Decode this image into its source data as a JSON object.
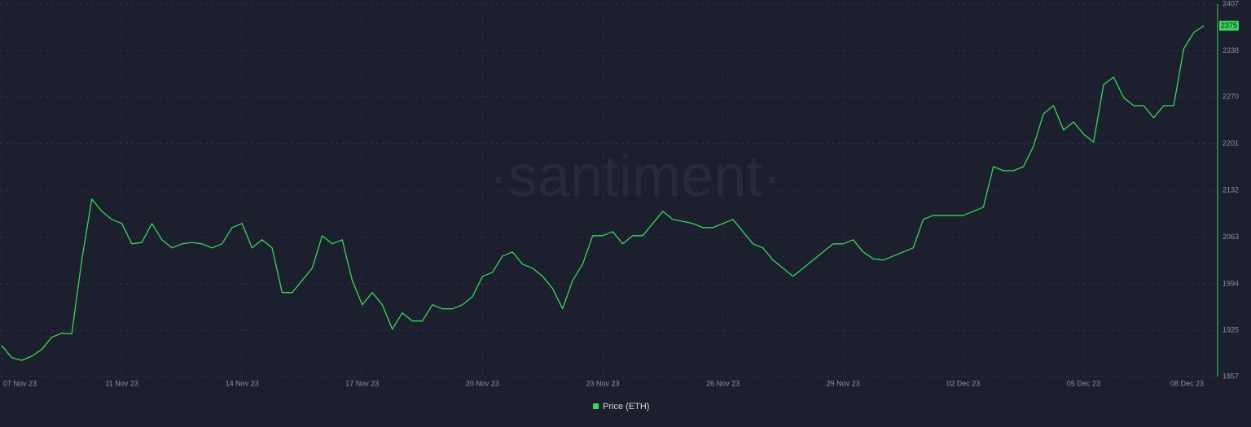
{
  "chart_data": {
    "type": "line",
    "watermark": "·santiment·",
    "categories": [
      "07 Nov 23",
      null,
      null,
      null,
      null,
      null,
      null,
      null,
      null,
      null,
      null,
      null,
      "11 Nov 23",
      null,
      null,
      null,
      null,
      null,
      null,
      null,
      null,
      null,
      null,
      null,
      "14 Nov 23",
      null,
      null,
      null,
      null,
      null,
      null,
      null,
      null,
      null,
      null,
      null,
      "17 Nov 23",
      null,
      null,
      null,
      null,
      null,
      null,
      null,
      null,
      null,
      null,
      null,
      "20 Nov 23",
      null,
      null,
      null,
      null,
      null,
      null,
      null,
      null,
      null,
      null,
      null,
      "23 Nov 23",
      null,
      null,
      null,
      null,
      null,
      null,
      null,
      null,
      null,
      null,
      null,
      "26 Nov 23",
      null,
      null,
      null,
      null,
      null,
      null,
      null,
      null,
      null,
      null,
      null,
      "29 Nov 23",
      null,
      null,
      null,
      null,
      null,
      null,
      null,
      null,
      null,
      null,
      null,
      "02 Dec 23",
      null,
      null,
      null,
      null,
      null,
      null,
      null,
      null,
      null,
      null,
      null,
      "05 Dec 23",
      null,
      null,
      null,
      null,
      null,
      null,
      null,
      null,
      null,
      null,
      null,
      "08 Dec 23"
    ],
    "series": [
      {
        "name": "Price (ETH)",
        "color": "#3ad65a",
        "values": [
          1903,
          1885,
          1881,
          1887,
          1897,
          1915,
          1921,
          1920,
          2029,
          2119,
          2101,
          2089,
          2083,
          2053,
          2055,
          2083,
          2059,
          2047,
          2053,
          2055,
          2053,
          2047,
          2053,
          2077,
          2083,
          2047,
          2059,
          2047,
          1981,
          1981,
          1999,
          2017,
          2065,
          2053,
          2059,
          1999,
          1963,
          1981,
          1963,
          1927,
          1951,
          1939,
          1939,
          1963,
          1957,
          1957,
          1963,
          1975,
          2005,
          2011,
          2035,
          2041,
          2023,
          2017,
          2005,
          1987,
          1957,
          1999,
          2023,
          2065,
          2065,
          2071,
          2053,
          2065,
          2065,
          2083,
          2101,
          2089,
          2086,
          2083,
          2077,
          2077,
          2083,
          2089,
          2071,
          2053,
          2047,
          2029,
          2017,
          2005,
          2017,
          2029,
          2041,
          2053,
          2053,
          2059,
          2041,
          2031,
          2029,
          2035,
          2041,
          2047,
          2089,
          2095,
          2095,
          2095,
          2095,
          2101,
          2107,
          2167,
          2161,
          2161,
          2167,
          2197,
          2245,
          2257,
          2221,
          2233,
          2215,
          2203,
          2288,
          2299,
          2269,
          2257,
          2257,
          2239,
          2257,
          2257,
          2341,
          2365,
          2375
        ]
      }
    ],
    "ylim": [
      1857,
      2407
    ],
    "yticks": [
      1857,
      1925,
      1994,
      2063,
      2132,
      2201,
      2270,
      2338,
      2407
    ],
    "grid": true
  }
}
